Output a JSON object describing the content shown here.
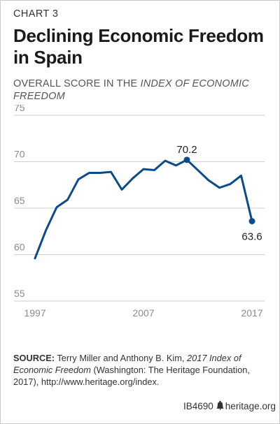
{
  "header": {
    "kicker": "CHART 3",
    "title": "Declining Economic Freedom in Spain",
    "subtitle_plain": "OVERALL SCORE IN THE ",
    "subtitle_italic": "INDEX OF ECONOMIC FREEDOM"
  },
  "chart_data": {
    "type": "line",
    "x": [
      1997,
      1998,
      1999,
      2000,
      2001,
      2002,
      2003,
      2004,
      2005,
      2006,
      2007,
      2008,
      2009,
      2010,
      2011,
      2012,
      2013,
      2014,
      2015,
      2016,
      2017
    ],
    "series": [
      {
        "values": [
          59.6,
          62.6,
          65.1,
          65.9,
          68.1,
          68.8,
          68.8,
          68.9,
          67.0,
          68.2,
          69.2,
          69.1,
          70.1,
          69.6,
          70.2,
          69.1,
          68.0,
          67.2,
          67.6,
          68.5,
          63.6
        ]
      }
    ],
    "xticks": [
      "1997",
      "2007",
      "2017"
    ],
    "yticks": [
      "55",
      "60",
      "65",
      "70",
      "75"
    ],
    "ylim": [
      55,
      75
    ],
    "xlim": [
      1997,
      2017
    ],
    "annotations": [
      {
        "x": 2011,
        "y": 70.2,
        "label": "70.2"
      },
      {
        "x": 2017,
        "y": 63.6,
        "label": "63.6"
      }
    ],
    "grid": "horizontal",
    "line_color": "#0b4a8b",
    "grid_color": "#cfcfcf"
  },
  "source": {
    "label": "SOURCE:",
    "text1": " Terry Miller and Anthony B. Kim, ",
    "italic": "2017 Index of Economic Freedom",
    "text2": " (Washington: The Heritage Foundation, 2017), http://www.heritage.org/index."
  },
  "footer": {
    "id": "IB4690",
    "site": "heritage.org"
  }
}
